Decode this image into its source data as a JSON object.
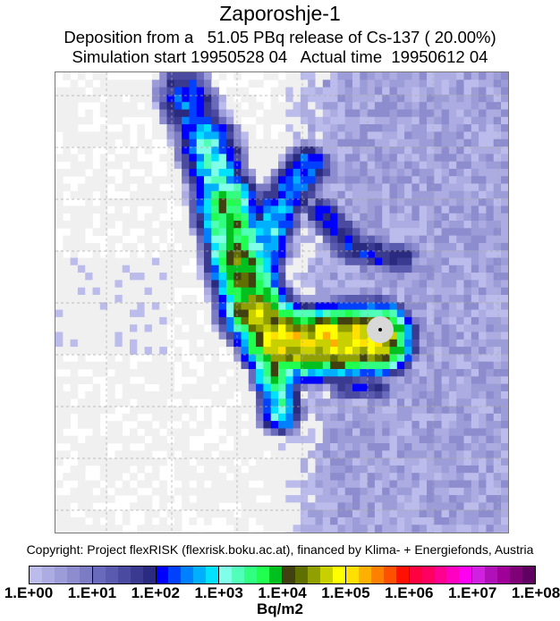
{
  "title": "Zaporoshje-1",
  "subtitle_1": "Deposition from a   51.05 PBq release of Cs-137 ( 20.00%)",
  "subtitle_2": "Simulation start 19950528 04   Actual time  19950612 04",
  "copyright": "Copyright: Project flexRISK (flexrisk.boku.ac.at), financed by Klima- + Energiefonds, Austria",
  "colorbar": {
    "unit": "Bq/m2",
    "tick_labels": [
      "1.E+00",
      "1.E+01",
      "1.E+02",
      "1.E+03",
      "1.E+04",
      "1.E+05",
      "1.E+06",
      "1.E+07",
      "1.E+08"
    ],
    "colors": [
      "#bcbcec",
      "#acace2",
      "#9c9cd8",
      "#8c8cce",
      "#7c7cc4",
      "#6a6abc",
      "#5a5aae",
      "#4a4aa0",
      "#3a3a90",
      "#2a2a80",
      "#0000ff",
      "#0040ff",
      "#0080ff",
      "#00b0ff",
      "#00e0ff",
      "#80ffe8",
      "#50ffb8",
      "#30ff80",
      "#20ff50",
      "#00c020",
      "#404010",
      "#607000",
      "#90a000",
      "#c8d000",
      "#ffff00",
      "#ffe000",
      "#ffb000",
      "#ff8000",
      "#ff5000",
      "#ff1000",
      "#ff0040",
      "#ff0060",
      "#ff0090",
      "#ff00c0",
      "#ff00f0",
      "#d020e0",
      "#b010b8",
      "#a00098",
      "#800078",
      "#600060"
    ],
    "below_range_color": "#f0f0f0"
  },
  "source_marker": {
    "name": "Zaporoshje-1",
    "color": "#d8d8d8"
  }
}
